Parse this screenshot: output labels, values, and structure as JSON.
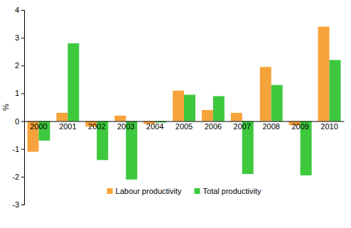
{
  "chart_data": {
    "type": "bar",
    "y_label": "%",
    "categories": [
      "2000",
      "2001",
      "2002",
      "2003",
      "2004",
      "2005",
      "2006",
      "2007",
      "2008",
      "2009",
      "2010"
    ],
    "series": [
      {
        "name": "Labour productivity",
        "color": "#f7a33b",
        "values": [
          -1.1,
          0.3,
          -0.2,
          0.2,
          -0.1,
          1.1,
          0.4,
          0.3,
          1.95,
          -0.15,
          3.4
        ]
      },
      {
        "name": "Total productivity",
        "color": "#3ec83e",
        "values": [
          -0.7,
          2.8,
          -1.4,
          -2.1,
          -0.05,
          0.95,
          0.9,
          -1.9,
          1.3,
          -1.95,
          2.2
        ]
      }
    ],
    "ylim": [
      -3,
      4
    ],
    "yticks": [
      -3,
      -2,
      -1,
      0,
      1,
      2,
      3,
      4
    ],
    "grid": false,
    "legend": "bottom"
  }
}
